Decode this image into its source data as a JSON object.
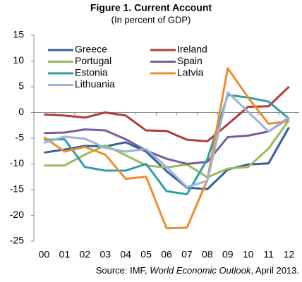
{
  "chart_data": {
    "type": "line",
    "title": "Figure 1. Current Account",
    "subtitle": "(In percent of GDP)",
    "source": [
      "Source: IMF, ",
      "World Economic Outlook",
      ", April 2013."
    ],
    "categories": [
      "00",
      "01",
      "02",
      "03",
      "04",
      "05",
      "06",
      "07",
      "08",
      "09",
      "10",
      "11",
      "12"
    ],
    "ylim": [
      -25,
      15
    ],
    "yticks": [
      15,
      10,
      5,
      0,
      -5,
      -10,
      -15,
      -20,
      -25
    ],
    "legend": "upper left",
    "series": [
      {
        "name": "Greece",
        "color": "#34609c",
        "values": [
          -7.8,
          -7.2,
          -6.5,
          -6.6,
          -5.8,
          -7.6,
          -11.4,
          -14.6,
          -14.9,
          -11.1,
          -10.1,
          -9.9,
          -2.9
        ]
      },
      {
        "name": "Ireland",
        "color": "#b23c3c",
        "values": [
          -0.4,
          -0.6,
          -1.0,
          0.0,
          -0.6,
          -3.5,
          -3.6,
          -5.3,
          -5.6,
          -2.3,
          1.1,
          1.2,
          5.0
        ]
      },
      {
        "name": "Portugal",
        "color": "#9bbb59",
        "values": [
          -10.3,
          -10.3,
          -8.2,
          -6.4,
          -8.3,
          -10.3,
          -10.7,
          -10.1,
          -12.6,
          -10.9,
          -10.6,
          -7.0,
          -1.5
        ]
      },
      {
        "name": "Spain",
        "color": "#7a5c9c",
        "values": [
          -4.0,
          -3.9,
          -3.3,
          -3.5,
          -5.2,
          -7.4,
          -9.0,
          -10.0,
          -9.6,
          -4.8,
          -4.5,
          -3.7,
          -1.1
        ]
      },
      {
        "name": "Estonia",
        "color": "#2f9eab",
        "values": [
          -5.3,
          -5.2,
          -10.6,
          -11.3,
          -11.3,
          -10.0,
          -15.3,
          -15.9,
          -9.1,
          3.4,
          2.9,
          2.1,
          -1.2
        ]
      },
      {
        "name": "Latvia",
        "color": "#f08c2e",
        "values": [
          -4.8,
          -7.6,
          -6.7,
          -8.2,
          -12.9,
          -12.5,
          -22.5,
          -22.4,
          -13.1,
          8.6,
          2.9,
          -2.2,
          -1.7
        ]
      },
      {
        "name": "Lithuania",
        "color": "#9bb4da",
        "values": [
          -5.9,
          -4.7,
          -5.1,
          -6.9,
          -7.6,
          -7.1,
          -10.6,
          -14.5,
          -13.3,
          3.9,
          0.1,
          -3.7,
          -0.9
        ]
      }
    ]
  }
}
